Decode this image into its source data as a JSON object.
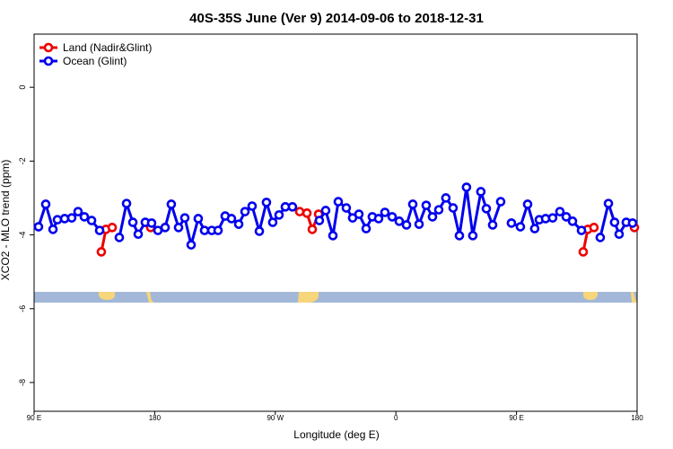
{
  "chart_data": {
    "type": "line",
    "title": "40S-35S June (Ver 9)   2014-09-06 to 2018-12-31",
    "x_label": "Longitude (deg E)",
    "y_label": "XCO2 - MLO trend (ppm)",
    "xlim": [
      90,
      540
    ],
    "xticks": [
      {
        "value": 90,
        "label": "90 E"
      },
      {
        "value": 180,
        "label": "180"
      },
      {
        "value": 270,
        "label": "90 W"
      },
      {
        "value": 360,
        "label": "0"
      },
      {
        "value": 450,
        "label": "90 E"
      },
      {
        "value": 540,
        "label": "180"
      }
    ],
    "ylim": [
      -8.78,
      1.44
    ],
    "yticks": [
      0,
      -2,
      -4,
      -6,
      -8
    ],
    "legend": "top-left",
    "series": [
      {
        "name": "Land (Nadir&Glint)",
        "color": "#ee0000",
        "x": [
          140.2,
          143.6,
          148.3,
          null,
          177.0,
          null,
          288.2,
          293.6,
          297.6,
          302.3,
          null,
          499.8,
          503.2,
          507.8,
          null,
          538.0
        ],
        "values": [
          -4.46,
          -3.85,
          -3.8,
          null,
          -3.8,
          null,
          -3.37,
          -3.41,
          -3.85,
          -3.44,
          null,
          -4.46,
          -3.85,
          -3.8,
          null,
          -3.8
        ]
      },
      {
        "name": "Ocean (Glint)",
        "color": "#0000ee",
        "x": [
          93.3,
          98.7,
          104.1,
          107.4,
          112.8,
          118.1,
          122.8,
          127.5,
          132.9,
          138.9,
          null,
          153.6,
          159.0,
          163.7,
          167.7,
          173.0,
          177.7,
          182.4,
          187.8,
          192.4,
          197.8,
          202.5,
          207.2,
          212.5,
          217.2,
          222.6,
          227.3,
          232.6,
          237.3,
          242.7,
          247.4,
          252.7,
          258.1,
          263.4,
          268.1,
          272.8,
          277.5,
          282.8,
          null,
          302.9,
          307.6,
          313.0,
          317.0,
          323.0,
          327.7,
          332.4,
          337.8,
          342.4,
          347.1,
          351.8,
          357.2,
          362.5,
          367.9,
          372.6,
          377.3,
          382.6,
          387.3,
          392.0,
          397.3,
          402.7,
          407.4,
          412.7,
          417.4,
          423.4,
          427.5,
          432.2,
          438.2,
          null,
          446.2,
          452.9,
          458.3,
          463.6,
          467.0,
          471.7,
          477.0,
          482.4,
          487.1,
          491.8,
          498.5,
          null,
          512.5,
          518.6,
          523.2,
          526.6,
          531.9,
          536.6
        ],
        "values": [
          -3.78,
          -3.17,
          -3.85,
          -3.59,
          -3.56,
          -3.54,
          -3.37,
          -3.51,
          -3.61,
          -3.88,
          null,
          -4.07,
          -3.15,
          -3.66,
          -3.98,
          -3.66,
          -3.68,
          -3.88,
          -3.8,
          -3.17,
          -3.8,
          -3.54,
          -4.27,
          -3.56,
          -3.88,
          -3.88,
          -3.88,
          -3.49,
          -3.56,
          -3.71,
          -3.37,
          -3.22,
          -3.9,
          -3.12,
          -3.66,
          -3.46,
          -3.24,
          -3.24,
          null,
          -3.61,
          -3.34,
          -4.02,
          -3.1,
          -3.27,
          -3.54,
          -3.44,
          -3.83,
          -3.51,
          -3.56,
          -3.39,
          -3.51,
          -3.63,
          -3.73,
          -3.17,
          -3.71,
          -3.2,
          -3.51,
          -3.32,
          -3.0,
          -3.27,
          -4.02,
          -2.71,
          -4.02,
          -2.83,
          -3.29,
          -3.73,
          -3.1,
          null,
          -3.68,
          -3.78,
          -3.17,
          -3.83,
          -3.59,
          -3.56,
          -3.54,
          -3.37,
          -3.51,
          -3.63,
          -3.88,
          null,
          -4.07,
          -3.15,
          -3.66,
          -3.98,
          -3.66,
          -3.68
        ]
      }
    ]
  }
}
